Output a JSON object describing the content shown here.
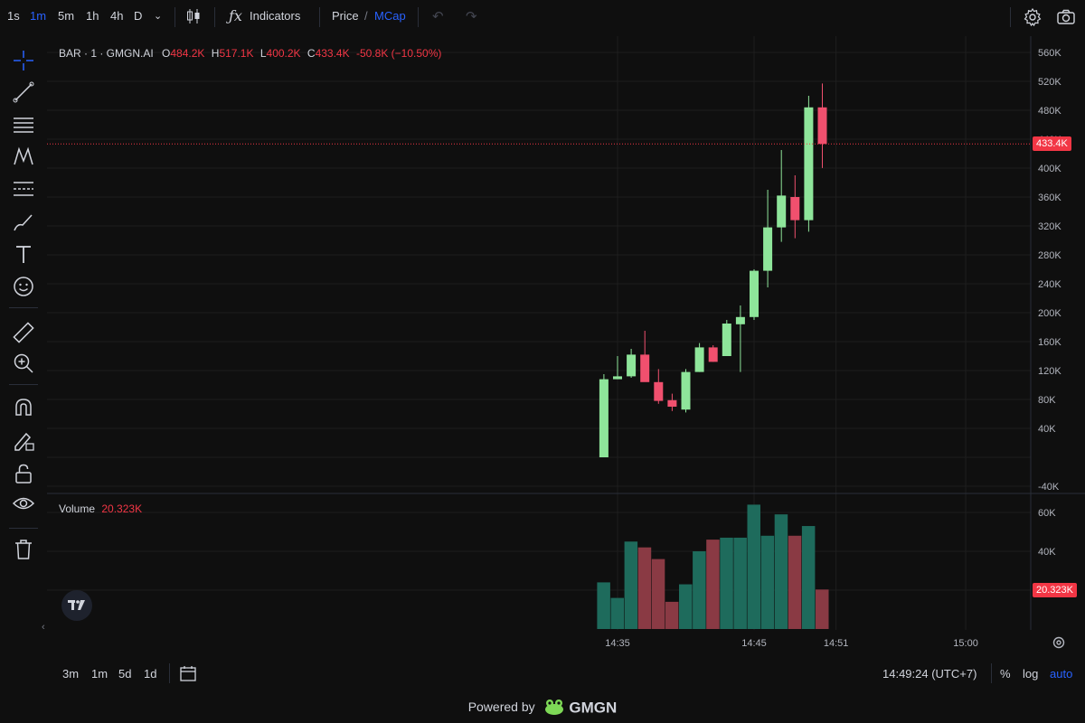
{
  "timeframes": [
    "1s",
    "1m",
    "5m",
    "1h",
    "4h",
    "D"
  ],
  "active_timeframe": "1m",
  "toolbar": {
    "indicators": "Indicators",
    "price": "Price",
    "slash": "/",
    "mcap": "MCap"
  },
  "legend": {
    "symbol": "BAR · 1 · GMGN.AI",
    "o_label": "O",
    "o_value": "484.2K",
    "h_label": "H",
    "h_value": "517.1K",
    "l_label": "L",
    "l_value": "400.2K",
    "c_label": "C",
    "c_value": "433.4K",
    "change": "-50.8K (−10.50%)"
  },
  "volume_legend": {
    "label": "Volume",
    "value": "20.323K"
  },
  "price_badge": "433.4K",
  "volume_badge": "20.323K",
  "y_ticks": [
    "560K",
    "520K",
    "480K",
    "440K",
    "400K",
    "360K",
    "320K",
    "280K",
    "240K",
    "200K",
    "160K",
    "120K",
    "80K",
    "40K",
    "",
    "-40K"
  ],
  "y_tick_values": [
    560,
    520,
    480,
    440,
    400,
    360,
    320,
    280,
    240,
    200,
    160,
    120,
    80,
    40,
    0,
    -40
  ],
  "vol_ticks": [
    "60K",
    "40K"
  ],
  "vol_tick_values": [
    60,
    40
  ],
  "x_ticks": [
    "14:35",
    "14:45",
    "14:51",
    "15:00"
  ],
  "bottom": {
    "ranges": [
      "3m",
      "1m",
      "5d",
      "1d"
    ],
    "clock": "14:49:24 (UTC+7)",
    "percent": "%",
    "log": "log",
    "auto": "auto"
  },
  "powered": {
    "text": "Powered by",
    "brand": "GMGN"
  },
  "colors": {
    "up": "#8ee59a",
    "down": "#f0506e",
    "vol_up": "#1e6b5c",
    "vol_down": "#8a3a44",
    "accent": "#2962ff",
    "badge": "#f23645"
  },
  "chart_data": {
    "type": "candlestick",
    "x_unit": "minutes since 14:35",
    "candles": [
      {
        "t": -1,
        "o": 0,
        "h": 115,
        "l": 0,
        "c": 108,
        "v": 24
      },
      {
        "t": 0,
        "o": 108,
        "h": 140,
        "l": 108,
        "c": 112,
        "v": 16
      },
      {
        "t": 1,
        "o": 112,
        "h": 150,
        "l": 110,
        "c": 142,
        "v": 45
      },
      {
        "t": 2,
        "o": 142,
        "h": 175,
        "l": 106,
        "c": 104,
        "v": 42
      },
      {
        "t": 3,
        "o": 104,
        "h": 122,
        "l": 74,
        "c": 78,
        "v": 36
      },
      {
        "t": 4,
        "o": 79,
        "h": 88,
        "l": 64,
        "c": 70,
        "v": 14
      },
      {
        "t": 5,
        "o": 66,
        "h": 122,
        "l": 62,
        "c": 118,
        "v": 23
      },
      {
        "t": 6,
        "o": 118,
        "h": 158,
        "l": 118,
        "c": 152,
        "v": 40
      },
      {
        "t": 7,
        "o": 152,
        "h": 155,
        "l": 132,
        "c": 132,
        "v": 46
      },
      {
        "t": 8,
        "o": 140,
        "h": 190,
        "l": 140,
        "c": 185,
        "v": 47
      },
      {
        "t": 9,
        "o": 184,
        "h": 210,
        "l": 118,
        "c": 194,
        "v": 47
      },
      {
        "t": 10,
        "o": 194,
        "h": 260,
        "l": 190,
        "c": 258,
        "v": 64
      },
      {
        "t": 11,
        "o": 258,
        "h": 370,
        "l": 235,
        "c": 318,
        "v": 48
      },
      {
        "t": 12,
        "o": 318,
        "h": 425,
        "l": 298,
        "c": 362,
        "v": 59
      },
      {
        "t": 13,
        "o": 360,
        "h": 390,
        "l": 303,
        "c": 328,
        "v": 48
      },
      {
        "t": 14,
        "o": 328,
        "h": 500,
        "l": 312,
        "c": 484,
        "v": 53
      },
      {
        "t": 15,
        "o": 484,
        "h": 517.1,
        "l": 400.2,
        "c": 433.4,
        "v": 20.323
      }
    ],
    "ylim": [
      -40,
      560
    ],
    "volume_ylim": [
      0,
      70
    ]
  }
}
